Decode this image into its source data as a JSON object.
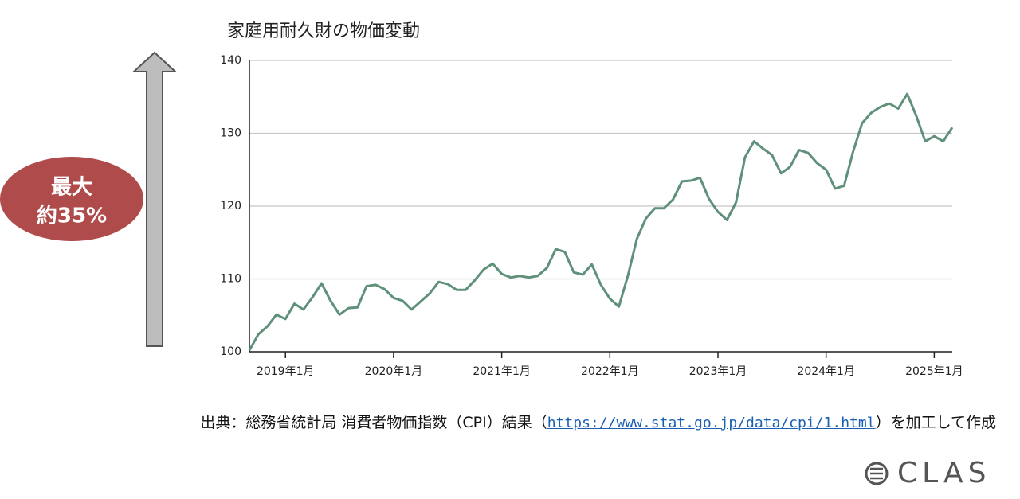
{
  "chart_data": {
    "type": "line",
    "title": "家庭用耐久財の物価変動",
    "categories": [
      null,
      null,
      null,
      null,
      "2019年1月",
      null,
      null,
      null,
      null,
      null,
      null,
      null,
      null,
      null,
      null,
      null,
      "2020年1月",
      null,
      null,
      null,
      null,
      null,
      null,
      null,
      null,
      null,
      null,
      null,
      "2021年1月",
      null,
      null,
      null,
      null,
      null,
      null,
      null,
      null,
      null,
      null,
      null,
      "2022年1月",
      null,
      null,
      null,
      null,
      null,
      null,
      null,
      null,
      null,
      null,
      null,
      "2023年1月",
      null,
      null,
      null,
      null,
      null,
      null,
      null,
      null,
      null,
      null,
      null,
      "2024年1月",
      null,
      null,
      null,
      null,
      null,
      null,
      null,
      null,
      null,
      null,
      null,
      "2025年1月",
      null,
      null
    ],
    "values": [
      100.2,
      102.4,
      103.5,
      105.1,
      104.5,
      106.6,
      105.8,
      107.5,
      109.4,
      107.0,
      105.1,
      106.0,
      106.1,
      109.0,
      109.2,
      108.6,
      107.4,
      107.0,
      105.8,
      106.9,
      108.0,
      109.6,
      109.3,
      108.5,
      108.5,
      109.8,
      111.3,
      112.1,
      110.7,
      110.2,
      110.4,
      110.2,
      110.4,
      111.5,
      114.1,
      113.7,
      110.9,
      110.6,
      112.0,
      109.2,
      107.3,
      106.2,
      110.4,
      115.5,
      118.3,
      119.7,
      119.7,
      120.9,
      123.4,
      123.5,
      123.9,
      121.0,
      119.2,
      118.1,
      120.5,
      126.7,
      128.9,
      127.9,
      127.0,
      124.5,
      125.4,
      127.7,
      127.3,
      125.9,
      125.0,
      122.4,
      122.8,
      127.5,
      131.4,
      132.8,
      133.6,
      134.1,
      133.4,
      135.4,
      132.4,
      128.9,
      129.6,
      128.9,
      130.8
    ],
    "color": "#5f9079",
    "ylim": [
      100,
      140
    ],
    "yticks": [
      100,
      110,
      120,
      130,
      140
    ],
    "grid": true,
    "annotation": [
      "最大",
      "約35%"
    ]
  },
  "source": {
    "prefix": "出典：総務省統計局 消費者物価指数（CPI）結果（",
    "link": "https://www.stat.go.jp/data/cpi/1.html",
    "suffix": "）を加工して作成"
  },
  "logo": "CLAS"
}
